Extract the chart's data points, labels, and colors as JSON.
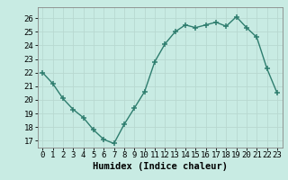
{
  "x": [
    0,
    1,
    2,
    3,
    4,
    5,
    6,
    7,
    8,
    9,
    10,
    11,
    12,
    13,
    14,
    15,
    16,
    17,
    18,
    19,
    20,
    21,
    22,
    23
  ],
  "y": [
    22.0,
    21.2,
    20.1,
    19.3,
    18.7,
    17.8,
    17.1,
    16.8,
    18.2,
    19.4,
    20.6,
    22.8,
    24.1,
    25.0,
    25.5,
    25.3,
    25.5,
    25.7,
    25.4,
    26.1,
    25.3,
    24.6,
    22.3,
    20.5
  ],
  "line_color": "#2e7d6e",
  "marker": "+",
  "bg_color": "#c8ebe3",
  "grid_color": "#b8d8d0",
  "xlabel": "Humidex (Indice chaleur)",
  "xlim": [
    -0.5,
    23.5
  ],
  "ylim": [
    16.5,
    26.8
  ],
  "yticks": [
    17,
    18,
    19,
    20,
    21,
    22,
    23,
    24,
    25,
    26
  ],
  "xticks": [
    0,
    1,
    2,
    3,
    4,
    5,
    6,
    7,
    8,
    9,
    10,
    11,
    12,
    13,
    14,
    15,
    16,
    17,
    18,
    19,
    20,
    21,
    22,
    23
  ],
  "tick_labelsize": 6.5,
  "xlabel_fontsize": 7.5,
  "linewidth": 1.0,
  "markersize": 4,
  "spine_color": "#888888"
}
